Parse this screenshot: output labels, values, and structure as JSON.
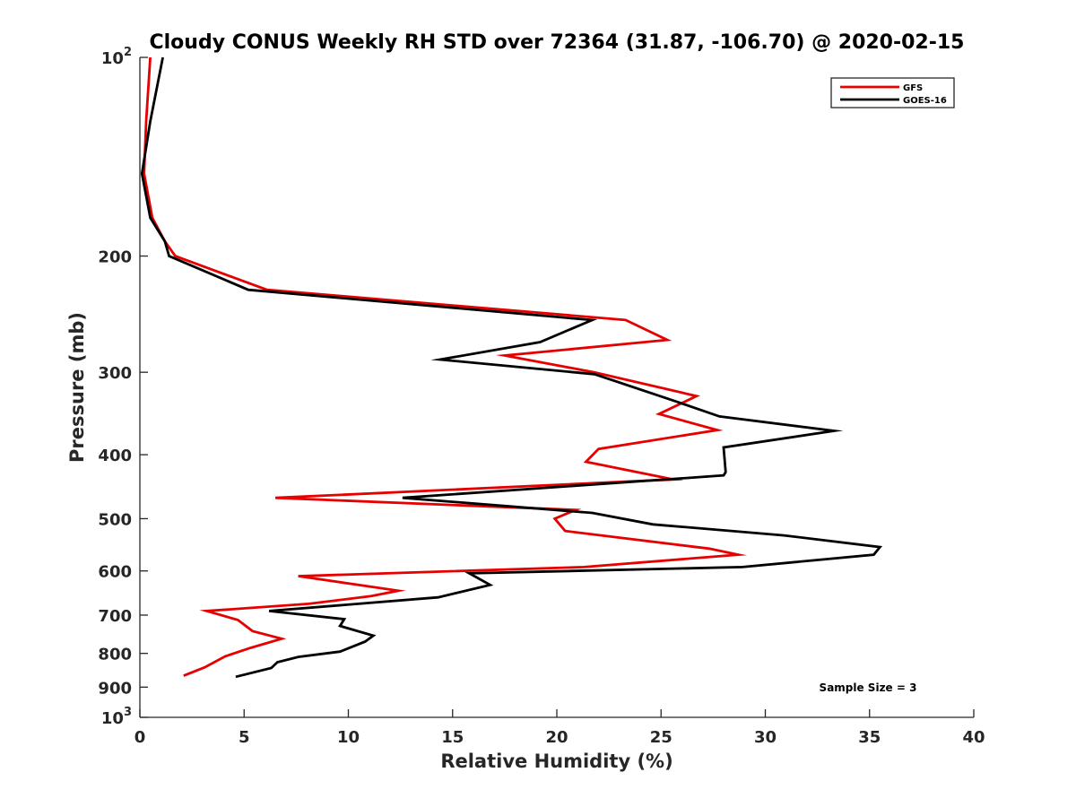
{
  "chart_data": {
    "type": "line",
    "title": "Cloudy CONUS Weekly RH STD over 72364 (31.87, -106.70) @ 2020-02-15",
    "xlabel": "Relative Humidity (%)",
    "ylabel": "Pressure (mb)",
    "xlim": [
      0,
      40
    ],
    "ylim": [
      100,
      1000
    ],
    "y_scale": "log",
    "y_reversed": true,
    "grid": false,
    "legend_position": "top-right",
    "x_ticks": [
      {
        "value": 0,
        "label": "0"
      },
      {
        "value": 5,
        "label": "5"
      },
      {
        "value": 10,
        "label": "10"
      },
      {
        "value": 15,
        "label": "15"
      },
      {
        "value": 20,
        "label": "20"
      },
      {
        "value": 25,
        "label": "25"
      },
      {
        "value": 30,
        "label": "30"
      },
      {
        "value": 35,
        "label": "35"
      },
      {
        "value": 40,
        "label": "40"
      }
    ],
    "y_ticks": [
      {
        "value": 100,
        "label": "10",
        "exp": "2"
      },
      {
        "value": 200,
        "label": "200"
      },
      {
        "value": 300,
        "label": "300"
      },
      {
        "value": 400,
        "label": "400"
      },
      {
        "value": 500,
        "label": "500"
      },
      {
        "value": 600,
        "label": "600"
      },
      {
        "value": 700,
        "label": "700"
      },
      {
        "value": 800,
        "label": "800"
      },
      {
        "value": 900,
        "label": "900"
      },
      {
        "value": 1000,
        "label": "10",
        "exp": "3"
      }
    ],
    "annotation": "Sample Size = 3",
    "series": [
      {
        "name": "GFS",
        "color": "#e60000",
        "points": [
          [
            0.5,
            100
          ],
          [
            0.3,
            125
          ],
          [
            0.2,
            150
          ],
          [
            0.6,
            175
          ],
          [
            1.2,
            190
          ],
          [
            1.7,
            200
          ],
          [
            6.1,
            225
          ],
          [
            23.3,
            250
          ],
          [
            25.3,
            268
          ],
          [
            17.5,
            283
          ],
          [
            21.8,
            300
          ],
          [
            26.7,
            326
          ],
          [
            24.9,
            347
          ],
          [
            27.7,
            367
          ],
          [
            22.0,
            392
          ],
          [
            21.4,
            410
          ],
          [
            25.6,
            436
          ],
          [
            6.5,
            465
          ],
          [
            20.9,
            485
          ],
          [
            19.9,
            500
          ],
          [
            20.4,
            522
          ],
          [
            27.3,
            555
          ],
          [
            28.7,
            567
          ],
          [
            21.3,
            592
          ],
          [
            7.6,
            611
          ],
          [
            12.4,
            643
          ],
          [
            11.1,
            655
          ],
          [
            8.1,
            673
          ],
          [
            3.2,
            690
          ],
          [
            4.7,
            712
          ],
          [
            5.4,
            740
          ],
          [
            6.8,
            760
          ],
          [
            5.3,
            785
          ],
          [
            4.1,
            808
          ],
          [
            3.1,
            840
          ],
          [
            2.1,
            865
          ]
        ]
      },
      {
        "name": "GOES-16",
        "color": "#000000",
        "points": [
          [
            1.1,
            100
          ],
          [
            0.5,
            125
          ],
          [
            0.1,
            150
          ],
          [
            0.5,
            175
          ],
          [
            1.2,
            190
          ],
          [
            1.4,
            200
          ],
          [
            5.2,
            225
          ],
          [
            21.7,
            250
          ],
          [
            19.2,
            270
          ],
          [
            14.4,
            287
          ],
          [
            21.8,
            302
          ],
          [
            25.7,
            332
          ],
          [
            27.8,
            350
          ],
          [
            33.3,
            368
          ],
          [
            28.0,
            390
          ],
          [
            28.1,
            425
          ],
          [
            28.0,
            430
          ],
          [
            12.6,
            465
          ],
          [
            21.7,
            490
          ],
          [
            24.6,
            510
          ],
          [
            30.9,
            530
          ],
          [
            35.5,
            552
          ],
          [
            35.2,
            567
          ],
          [
            28.9,
            592
          ],
          [
            15.8,
            605
          ],
          [
            16.8,
            630
          ],
          [
            14.3,
            658
          ],
          [
            6.2,
            690
          ],
          [
            9.8,
            710
          ],
          [
            9.6,
            727
          ],
          [
            11.2,
            752
          ],
          [
            10.8,
            768
          ],
          [
            9.6,
            795
          ],
          [
            7.6,
            810
          ],
          [
            6.6,
            825
          ],
          [
            6.3,
            842
          ],
          [
            4.6,
            868
          ]
        ]
      }
    ]
  }
}
